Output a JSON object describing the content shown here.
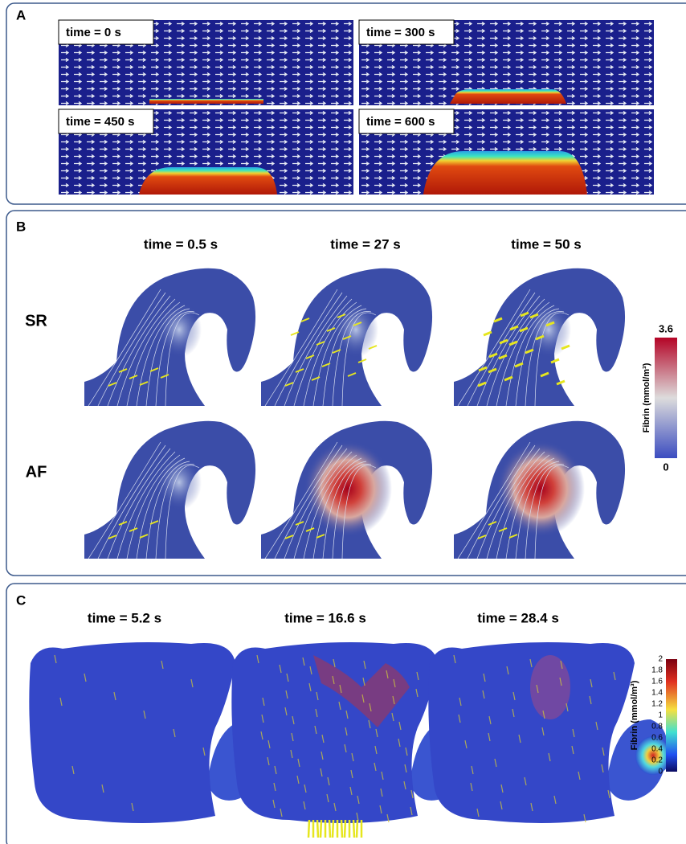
{
  "panels": [
    {
      "label": "A",
      "frames": [
        "time = 0 s",
        "time = 300 s",
        "time = 450 s",
        "time = 600 s"
      ]
    },
    {
      "label": "B",
      "times": [
        "time = 0.5 s",
        "time = 27 s",
        "time = 50 s"
      ],
      "rows": [
        "SR",
        "AF"
      ],
      "colorbar": {
        "title": "Fibrin (mmol/m³)",
        "max": "3.6",
        "min": "0"
      }
    },
    {
      "label": "C",
      "times": [
        "time = 5.2 s",
        "time = 16.6 s",
        "time = 28.4 s"
      ],
      "colorbar": {
        "title": "Fibrin (mmol/m³)",
        "ticks": [
          "2",
          "1.8",
          "1.6",
          "1.4",
          "1.2",
          "1",
          "0.8",
          "0.6",
          "0.4",
          "0.2",
          "0"
        ]
      }
    }
  ]
}
